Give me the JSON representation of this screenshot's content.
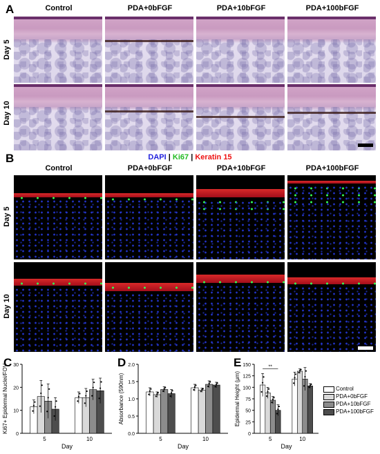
{
  "panels": {
    "a_letter": "A",
    "b_letter": "B",
    "c_letter": "C",
    "d_letter": "D",
    "e_letter": "E"
  },
  "columns": [
    "Control",
    "PDA+0bFGF",
    "PDA+10bFGF",
    "PDA+100bFGF"
  ],
  "rows": [
    "Day 5",
    "Day 10"
  ],
  "stain_legend": {
    "dapi": "DAPI",
    "sep1": " | ",
    "ki67": "Ki67",
    "sep2": " | ",
    "keratin": "Keratin 15",
    "dapi_color": "#2222dd",
    "ki67_color": "#22bb22",
    "keratin_color": "#ee1111"
  },
  "legend": {
    "items": [
      "Control",
      "PDA+0bFGF",
      "PDA+10bFGF",
      "PDA+100bFGF"
    ],
    "colors": [
      "#ffffff",
      "#d9d9d9",
      "#8c8c8c",
      "#4d4d4d"
    ]
  },
  "chart_data": [
    {
      "type": "bar",
      "panel": "C",
      "ylabel": "Ki67+ Epidermal Nuclei/FOV",
      "xlabel": "Day",
      "categories": [
        "5",
        "10"
      ],
      "ylim": [
        0,
        30
      ],
      "yticks": [
        0,
        10,
        20,
        30
      ],
      "series": [
        {
          "name": "Control",
          "values": [
            11.5,
            15.5
          ],
          "errors": [
            3,
            2.5
          ]
        },
        {
          "name": "PDA+0bFGF",
          "values": [
            16,
            15.5
          ],
          "errors": [
            7,
            4
          ]
        },
        {
          "name": "PDA+10bFGF",
          "values": [
            14,
            19
          ],
          "errors": [
            7.5,
            4.5
          ]
        },
        {
          "name": "PDA+100bFGF",
          "values": [
            10.5,
            18.5
          ],
          "errors": [
            5,
            5.5
          ]
        }
      ]
    },
    {
      "type": "bar",
      "panel": "D",
      "ylabel": "Absorbance (590nm)",
      "xlabel": "Day",
      "categories": [
        "5",
        "10"
      ],
      "ylim": [
        0,
        2.0
      ],
      "yticks": [
        0.0,
        0.5,
        1.0,
        1.5,
        2.0
      ],
      "series": [
        {
          "name": "Control",
          "values": [
            1.2,
            1.32
          ],
          "errors": [
            0.12,
            0.1
          ]
        },
        {
          "name": "PDA+0bFGF",
          "values": [
            1.12,
            1.25
          ],
          "errors": [
            0.08,
            0.06
          ]
        },
        {
          "name": "PDA+10bFGF",
          "values": [
            1.27,
            1.42
          ],
          "errors": [
            0.08,
            0.1
          ]
        },
        {
          "name": "PDA+100bFGF",
          "values": [
            1.15,
            1.4
          ],
          "errors": [
            0.12,
            0.08
          ]
        }
      ]
    },
    {
      "type": "bar",
      "panel": "E",
      "ylabel": "Epidermal Height (μm)",
      "xlabel": "Day",
      "categories": [
        "5",
        "10"
      ],
      "ylim": [
        0,
        150
      ],
      "yticks": [
        0,
        25,
        50,
        75,
        100,
        125,
        150
      ],
      "series": [
        {
          "name": "Control",
          "values": [
            105,
            118
          ],
          "errors": [
            25,
            15
          ]
        },
        {
          "name": "PDA+0bFGF",
          "values": [
            88,
            135
          ],
          "errors": [
            12,
            5
          ]
        },
        {
          "name": "PDA+10bFGF",
          "values": [
            72,
            118
          ],
          "errors": [
            8,
            25
          ]
        },
        {
          "name": "PDA+100bFGF",
          "values": [
            50,
            103
          ],
          "errors": [
            12,
            5
          ]
        }
      ],
      "annotation": "**"
    }
  ]
}
